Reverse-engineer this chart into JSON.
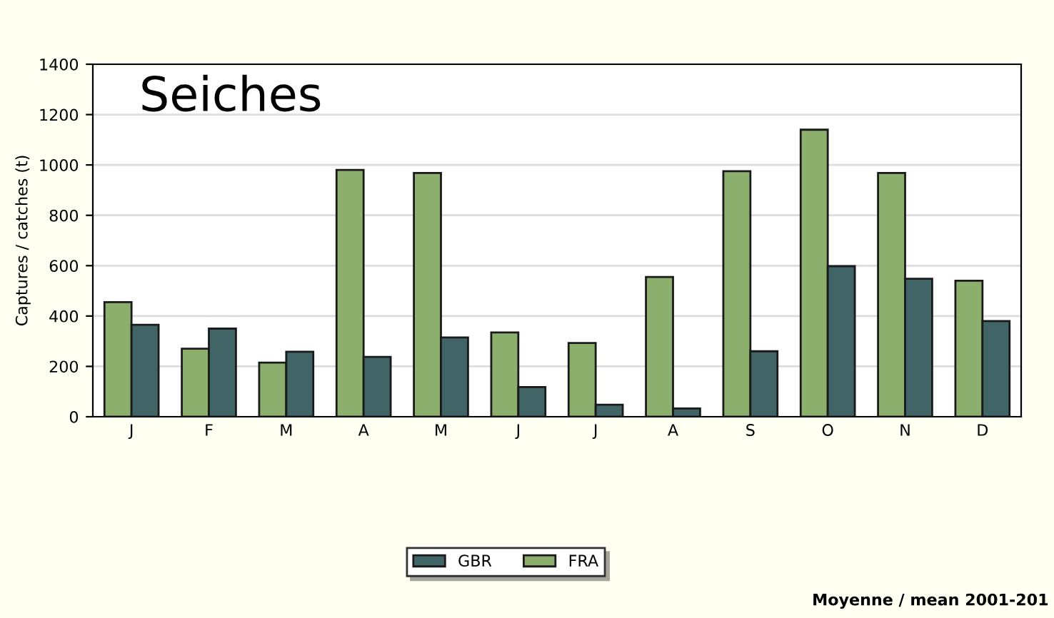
{
  "chart_data": {
    "type": "bar",
    "title": "Seiches",
    "ylabel": "Captures / catches (t)",
    "categories": [
      "J",
      "F",
      "M",
      "A",
      "M",
      "J",
      "J",
      "A",
      "S",
      "O",
      "N",
      "D"
    ],
    "series": [
      {
        "name": "FRA",
        "color": "#8caf6e",
        "values": [
          455,
          270,
          215,
          980,
          968,
          335,
          293,
          555,
          975,
          1140,
          968,
          540
        ]
      },
      {
        "name": "GBR",
        "color": "#416466",
        "values": [
          365,
          350,
          258,
          238,
          315,
          118,
          48,
          33,
          260,
          598,
          548,
          380
        ]
      }
    ],
    "ylim": [
      0,
      1400
    ],
    "yticks": [
      0,
      200,
      400,
      600,
      800,
      1000,
      1200,
      1400
    ],
    "grid": "y",
    "legend": "bottom",
    "annotations": [
      "Moyenne / mean 2001-201"
    ]
  }
}
